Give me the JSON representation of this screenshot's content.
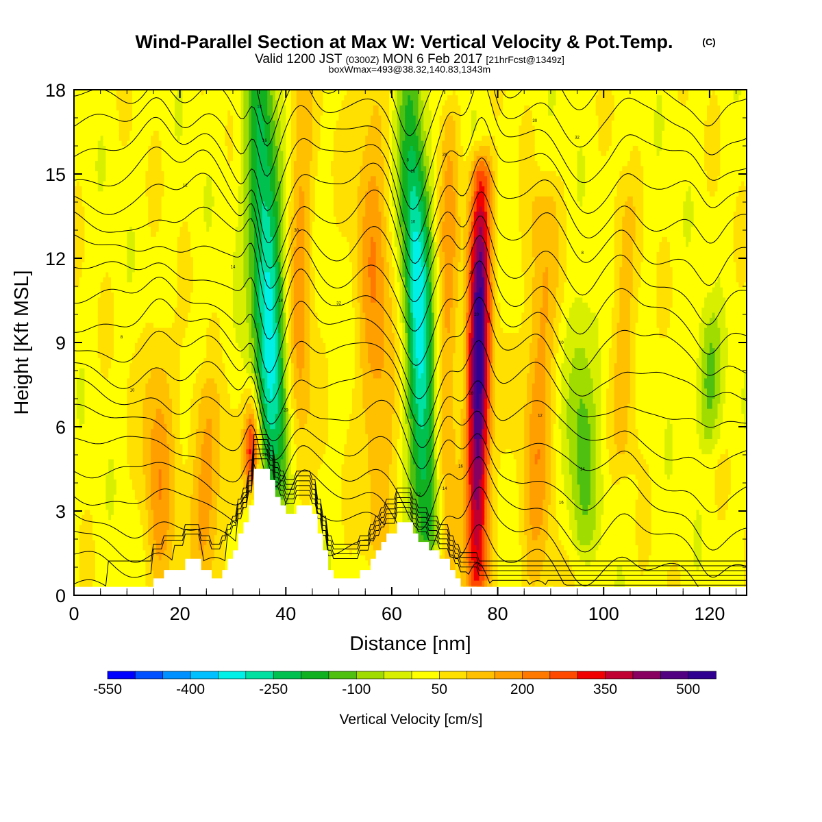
{
  "header": {
    "title": "Wind-Parallel Section at Max W: Vertical Velocity & Pot.Temp.",
    "copyright": "(C)",
    "valid_prefix": "Valid 1200 JST",
    "valid_utc": "(0300Z)",
    "valid_date": "MON 6 Feb 2017",
    "forecast": "[21hrFcst@1349z]",
    "box_info": "boxWmax=493@38.32,140.83,1343m"
  },
  "chart_data": {
    "type": "heatmap",
    "xlabel": "Distance [nm]",
    "ylabel": "Height [Kft MSL]",
    "xlim": [
      0,
      127
    ],
    "ylim": [
      0,
      18
    ],
    "x_ticks": [
      0,
      20,
      40,
      60,
      80,
      100,
      120
    ],
    "y_ticks": [
      0,
      3,
      6,
      9,
      12,
      15,
      18
    ],
    "terrain": [
      [
        15,
        0
      ],
      [
        15,
        0.6
      ],
      [
        17,
        0.6
      ],
      [
        17,
        0.9
      ],
      [
        21,
        0.9
      ],
      [
        21,
        1.3
      ],
      [
        24,
        1.3
      ],
      [
        24,
        0.9
      ],
      [
        26,
        0.9
      ],
      [
        26,
        0.6
      ],
      [
        28,
        0.6
      ],
      [
        28,
        0.9
      ],
      [
        29,
        0.9
      ],
      [
        29,
        1.3
      ],
      [
        30,
        1.3
      ],
      [
        30,
        1.6
      ],
      [
        31,
        1.6
      ],
      [
        31,
        2.2
      ],
      [
        32,
        2.2
      ],
      [
        32,
        2.6
      ],
      [
        33,
        2.6
      ],
      [
        33,
        3.2
      ],
      [
        34,
        3.2
      ],
      [
        34,
        4.5
      ],
      [
        37,
        4.5
      ],
      [
        37,
        4.1
      ],
      [
        38,
        4.1
      ],
      [
        38,
        3.5
      ],
      [
        39,
        3.5
      ],
      [
        39,
        3.2
      ],
      [
        40,
        3.2
      ],
      [
        40,
        2.9
      ],
      [
        42,
        2.9
      ],
      [
        42,
        3.2
      ],
      [
        45,
        3.2
      ],
      [
        45,
        2.9
      ],
      [
        46,
        2.9
      ],
      [
        46,
        2.2
      ],
      [
        47,
        2.2
      ],
      [
        47,
        1.6
      ],
      [
        48,
        1.6
      ],
      [
        48,
        0.9
      ],
      [
        49,
        0.9
      ],
      [
        49,
        0.6
      ],
      [
        54,
        0.6
      ],
      [
        54,
        0.9
      ],
      [
        56,
        0.9
      ],
      [
        56,
        1.3
      ],
      [
        57,
        1.3
      ],
      [
        57,
        1.6
      ],
      [
        58,
        1.6
      ],
      [
        58,
        1.9
      ],
      [
        59,
        1.9
      ],
      [
        59,
        2.2
      ],
      [
        61,
        2.2
      ],
      [
        61,
        2.6
      ],
      [
        64,
        2.6
      ],
      [
        64,
        2.2
      ],
      [
        65,
        2.2
      ],
      [
        65,
        1.9
      ],
      [
        67,
        1.9
      ],
      [
        67,
        1.6
      ],
      [
        69,
        1.6
      ],
      [
        69,
        1.3
      ],
      [
        71,
        1.3
      ],
      [
        71,
        0.9
      ],
      [
        72,
        0.9
      ],
      [
        72,
        0.6
      ],
      [
        73,
        0.6
      ],
      [
        73,
        0.3
      ],
      [
        76,
        0.3
      ],
      [
        76,
        0
      ]
    ],
    "velocity_features": [
      {
        "x_top": 35,
        "x_bottom": 39,
        "width": 3.2,
        "value": -350,
        "y_from": 3.5,
        "y_to": 18
      },
      {
        "x_top": 63.5,
        "x_bottom": 67,
        "width": 2.8,
        "value": -350,
        "y_from": 2.0,
        "y_to": 18
      },
      {
        "x_top": 77,
        "x_bottom": 76,
        "width": 2.2,
        "value": 493,
        "y_from": 0.5,
        "y_to": 15
      },
      {
        "x_top": 43,
        "x_bottom": 42,
        "width": 2.5,
        "value": 150,
        "y_from": 3.5,
        "y_to": 18
      },
      {
        "x_top": 71,
        "x_bottom": 70,
        "width": 2.0,
        "value": 150,
        "y_from": 1.0,
        "y_to": 17
      },
      {
        "x_top": 34,
        "x_bottom": 33.5,
        "width": 1.5,
        "value": 300,
        "y_from": 4.0,
        "y_to": 6.5
      },
      {
        "x_top": 56,
        "x_bottom": 58,
        "width": 3.5,
        "value": 150,
        "y_from": 2.0,
        "y_to": 18
      },
      {
        "x_top": 16,
        "x_bottom": 16,
        "width": 3.0,
        "value": 150,
        "y_from": 0.5,
        "y_to": 9
      },
      {
        "x_top": 25,
        "x_bottom": 25,
        "width": 3.5,
        "value": 150,
        "y_from": 0.5,
        "y_to": 7
      },
      {
        "x_top": 89,
        "x_bottom": 87,
        "width": 3.0,
        "value": 150,
        "y_from": 0.5,
        "y_to": 14
      },
      {
        "x_top": 96,
        "x_bottom": 96,
        "width": 3.0,
        "value": -150,
        "y_from": 2.0,
        "y_to": 10
      },
      {
        "x_top": 120,
        "x_bottom": 120,
        "width": 2.5,
        "value": -150,
        "y_from": 5.5,
        "y_to": 9.5
      },
      {
        "x_top": 104,
        "x_bottom": 104,
        "width": 2.5,
        "value": 100,
        "y_from": 5,
        "y_to": 14
      }
    ],
    "theta_contour_labels": [
      "8",
      "10",
      "12",
      "14",
      "16",
      "18",
      "20",
      "28",
      "30",
      "32"
    ],
    "colorbar": {
      "label": "Vertical Velocity [cm/s]",
      "levels": [
        -550,
        -500,
        -450,
        -400,
        -350,
        -300,
        -250,
        -200,
        -150,
        -100,
        -50,
        0,
        50,
        100,
        150,
        200,
        250,
        300,
        350,
        400,
        450,
        500,
        550
      ],
      "tick_values": [
        -550,
        -400,
        -250,
        -100,
        50,
        200,
        350,
        500
      ],
      "colors": [
        "#0000ff",
        "#0050ff",
        "#0090ff",
        "#00c0ff",
        "#00f0e8",
        "#00e0a0",
        "#00c050",
        "#10b020",
        "#50c010",
        "#a0dc00",
        "#d8f000",
        "#ffff00",
        "#ffe000",
        "#ffc000",
        "#ffa000",
        "#ff7800",
        "#ff4800",
        "#f00000",
        "#c00030",
        "#880060",
        "#500080",
        "#300090"
      ]
    }
  }
}
